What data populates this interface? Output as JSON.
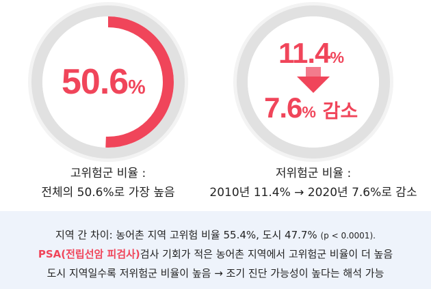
{
  "chart_data": [
    {
      "type": "gauge",
      "value": 50.6,
      "max": 100,
      "value_text": "50.6",
      "unit": "%",
      "caption_line1": "고위험군 비율 :",
      "caption_line2": "전체의 50.6%로 가장 높음"
    },
    {
      "type": "comparison",
      "from_value": 11.4,
      "to_value": 7.6,
      "from_text": "11.4",
      "to_text": "7.6",
      "unit": "%",
      "change_label": "감소",
      "caption_line1": "저위험군 비율 :",
      "caption_line2": "2010년 11.4% → 2020년 7.6%로 감소"
    }
  ],
  "notes": {
    "line1_main": "지역 간 차이: 농어촌 지역 고위험 비율 55.4%, 도시 47.7% ",
    "line1_small": "(p < 0.0001).",
    "line2_highlight": "PSA(전립선암 피검사)",
    "line2_rest": "검사 기회가 적은 농어촌 지역에서 고위험군 비율이 더 높음",
    "line3": "도시 지역일수록 저위험군 비율이 높음 → 조기 진단 가능성이 높다는 해석 가능"
  },
  "colors": {
    "accent": "#f0455a",
    "ring": "#e1e1e1",
    "note_bg": "#eef3fb"
  }
}
